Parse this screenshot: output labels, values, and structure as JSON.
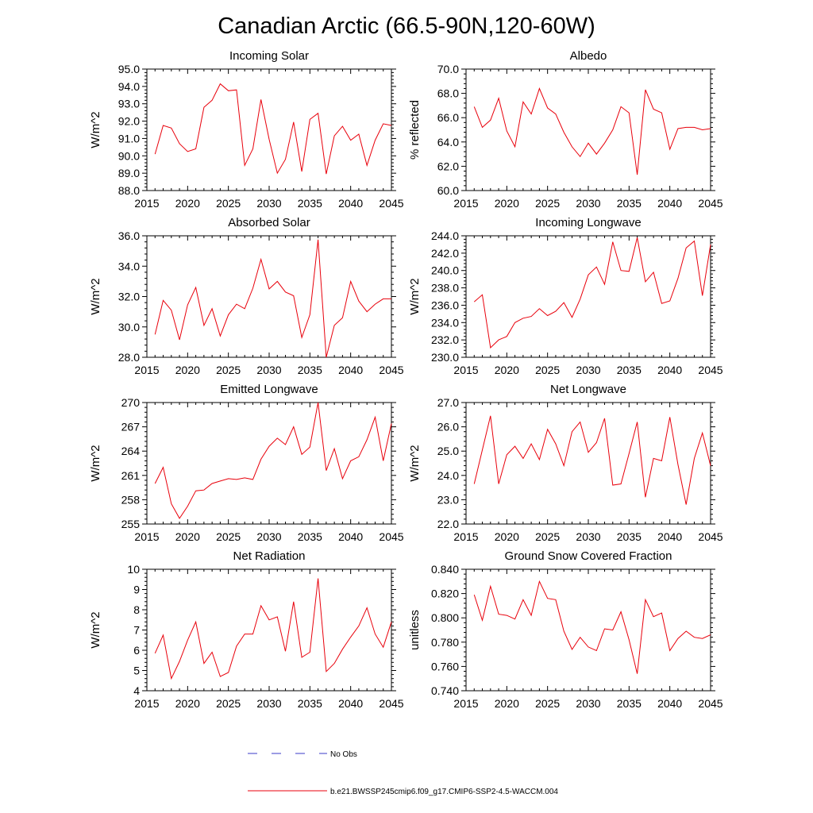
{
  "title": "Canadian Arctic (66.5-90N,120-60W)",
  "colors": {
    "model": "#e8000b",
    "obs": "#3b3bc8",
    "axis": "#000000"
  },
  "legend": {
    "obs_label": "No Obs",
    "model_label": "b.e21.BWSSP245cmip6.f09_g17.CMIP6-SSP2-4.5-WACCM.004"
  },
  "chart_data": [
    {
      "type": "line",
      "title": "Incoming Solar",
      "xlabel": "",
      "ylabel": "W/m^2",
      "xlim": [
        2015,
        2045
      ],
      "ylim": [
        88,
        95
      ],
      "xticks": [
        "2015",
        "2020",
        "2025",
        "2030",
        "2035",
        "2040",
        "2045"
      ],
      "yticks": [
        "88.0",
        "89.0",
        "90.0",
        "91.0",
        "92.0",
        "93.0",
        "94.0",
        "95.0"
      ],
      "x": [
        2016,
        2017,
        2018,
        2019,
        2020,
        2021,
        2022,
        2023,
        2024,
        2025,
        2026,
        2027,
        2028,
        2029,
        2030,
        2031,
        2032,
        2033,
        2034,
        2035,
        2036,
        2037,
        2038,
        2039,
        2040,
        2041,
        2042,
        2043,
        2044,
        2045
      ],
      "values": [
        90.1,
        91.75,
        91.6,
        90.7,
        90.25,
        90.4,
        92.8,
        93.2,
        94.15,
        93.75,
        93.8,
        89.45,
        90.4,
        93.25,
        90.95,
        89.0,
        89.8,
        91.95,
        89.1,
        92.1,
        92.45,
        88.95,
        91.15,
        91.7,
        90.9,
        91.25,
        89.45,
        90.9,
        91.85,
        91.75
      ],
      "series_name": "b.e21.BWSSP245cmip6.f09_g17.CMIP6-SSP2-4.5-WACCM.004"
    },
    {
      "type": "line",
      "title": "Albedo",
      "xlabel": "",
      "ylabel": "% reflected",
      "xlim": [
        2015,
        2045
      ],
      "ylim": [
        60,
        70
      ],
      "xticks": [
        "2015",
        "2020",
        "2025",
        "2030",
        "2035",
        "2040",
        "2045"
      ],
      "yticks": [
        "60.0",
        "62.0",
        "64.0",
        "66.0",
        "68.0",
        "70.0"
      ],
      "x": [
        2016,
        2017,
        2018,
        2019,
        2020,
        2021,
        2022,
        2023,
        2024,
        2025,
        2026,
        2027,
        2028,
        2029,
        2030,
        2031,
        2032,
        2033,
        2034,
        2035,
        2036,
        2037,
        2038,
        2039,
        2040,
        2041,
        2042,
        2043,
        2044,
        2045
      ],
      "values": [
        66.9,
        65.2,
        65.8,
        67.6,
        64.9,
        63.6,
        67.3,
        66.3,
        68.4,
        66.8,
        66.3,
        64.8,
        63.6,
        62.8,
        63.9,
        63.0,
        63.9,
        65.0,
        66.9,
        66.4,
        61.3,
        68.3,
        66.7,
        66.4,
        63.4,
        65.1,
        65.2,
        65.2,
        65.0,
        65.1
      ],
      "series_name": "b.e21.BWSSP245cmip6.f09_g17.CMIP6-SSP2-4.5-WACCM.004"
    },
    {
      "type": "line",
      "title": "Absorbed Solar",
      "xlabel": "",
      "ylabel": "W/m^2",
      "xlim": [
        2015,
        2045
      ],
      "ylim": [
        28,
        36
      ],
      "xticks": [
        "2015",
        "2020",
        "2025",
        "2030",
        "2035",
        "2040",
        "2045"
      ],
      "yticks": [
        "28.0",
        "30.0",
        "32.0",
        "34.0",
        "36.0"
      ],
      "x": [
        2016,
        2017,
        2018,
        2019,
        2020,
        2021,
        2022,
        2023,
        2024,
        2025,
        2026,
        2027,
        2028,
        2029,
        2030,
        2031,
        2032,
        2033,
        2034,
        2035,
        2036,
        2037,
        2038,
        2039,
        2040,
        2041,
        2042,
        2043,
        2044,
        2045
      ],
      "values": [
        29.5,
        31.75,
        31.1,
        29.15,
        31.45,
        32.6,
        30.1,
        31.2,
        29.4,
        30.8,
        31.5,
        31.2,
        32.55,
        34.45,
        32.5,
        33.0,
        32.3,
        32.05,
        29.3,
        30.8,
        35.75,
        28.0,
        30.1,
        30.6,
        33.0,
        31.7,
        31.0,
        31.5,
        31.85,
        31.85
      ],
      "series_name": "b.e21.BWSSP245cmip6.f09_g17.CMIP6-SSP2-4.5-WACCM.004"
    },
    {
      "type": "line",
      "title": "Incoming Longwave",
      "xlabel": "",
      "ylabel": "W/m^2",
      "xlim": [
        2015,
        2045
      ],
      "ylim": [
        230,
        244
      ],
      "xticks": [
        "2015",
        "2020",
        "2025",
        "2030",
        "2035",
        "2040",
        "2045"
      ],
      "yticks": [
        "230.0",
        "232.0",
        "234.0",
        "236.0",
        "238.0",
        "240.0",
        "242.0",
        "244.0"
      ],
      "x": [
        2016,
        2017,
        2018,
        2019,
        2020,
        2021,
        2022,
        2023,
        2024,
        2025,
        2026,
        2027,
        2028,
        2029,
        2030,
        2031,
        2032,
        2033,
        2034,
        2035,
        2036,
        2037,
        2038,
        2039,
        2040,
        2041,
        2042,
        2043,
        2044,
        2045
      ],
      "values": [
        236.4,
        237.2,
        231.1,
        232.0,
        232.4,
        234.0,
        234.5,
        234.7,
        235.6,
        234.8,
        235.3,
        236.3,
        234.6,
        236.7,
        239.5,
        240.4,
        238.4,
        243.3,
        240.0,
        239.9,
        243.8,
        238.7,
        239.8,
        236.2,
        236.5,
        239.1,
        242.6,
        243.4,
        237.1,
        243.0
      ],
      "series_name": "b.e21.BWSSP245cmip6.f09_g17.CMIP6-SSP2-4.5-WACCM.004"
    },
    {
      "type": "line",
      "title": "Emitted Longwave",
      "xlabel": "",
      "ylabel": "W/m^2",
      "xlim": [
        2015,
        2045
      ],
      "ylim": [
        255,
        270
      ],
      "xticks": [
        "2015",
        "2020",
        "2025",
        "2030",
        "2035",
        "2040",
        "2045"
      ],
      "yticks": [
        "255",
        "258",
        "261",
        "264",
        "267",
        "270"
      ],
      "x": [
        2016,
        2017,
        2018,
        2019,
        2020,
        2021,
        2022,
        2023,
        2024,
        2025,
        2026,
        2027,
        2028,
        2029,
        2030,
        2031,
        2032,
        2033,
        2034,
        2035,
        2036,
        2037,
        2038,
        2039,
        2040,
        2041,
        2042,
        2043,
        2044,
        2045
      ],
      "values": [
        260.0,
        262.0,
        257.5,
        255.7,
        257.2,
        259.1,
        259.2,
        260.0,
        260.3,
        260.6,
        260.5,
        260.7,
        260.5,
        263.0,
        264.6,
        265.6,
        264.8,
        267.0,
        263.6,
        264.5,
        270.0,
        261.6,
        264.3,
        260.6,
        262.8,
        263.3,
        265.4,
        268.2,
        262.8,
        267.4
      ],
      "series_name": "b.e21.BWSSP245cmip6.f09_g17.CMIP6-SSP2-4.5-WACCM.004"
    },
    {
      "type": "line",
      "title": "Net Longwave",
      "xlabel": "",
      "ylabel": "W/m^2",
      "xlim": [
        2015,
        2045
      ],
      "ylim": [
        22,
        27
      ],
      "xticks": [
        "2015",
        "2020",
        "2025",
        "2030",
        "2035",
        "2040",
        "2045"
      ],
      "yticks": [
        "22.0",
        "23.0",
        "24.0",
        "25.0",
        "26.0",
        "27.0"
      ],
      "x": [
        2016,
        2017,
        2018,
        2019,
        2020,
        2021,
        2022,
        2023,
        2024,
        2025,
        2026,
        2027,
        2028,
        2029,
        2030,
        2031,
        2032,
        2033,
        2034,
        2035,
        2036,
        2037,
        2038,
        2039,
        2040,
        2041,
        2042,
        2043,
        2044,
        2045
      ],
      "values": [
        23.65,
        25.05,
        26.45,
        23.65,
        24.85,
        25.2,
        24.7,
        25.3,
        24.65,
        25.9,
        25.3,
        24.4,
        25.8,
        26.2,
        24.95,
        25.35,
        26.35,
        23.6,
        23.65,
        24.9,
        26.2,
        23.1,
        24.7,
        24.6,
        26.4,
        24.45,
        22.8,
        24.7,
        25.75,
        24.4
      ],
      "series_name": "b.e21.BWSSP245cmip6.f09_g17.CMIP6-SSP2-4.5-WACCM.004"
    },
    {
      "type": "line",
      "title": "Net Radiation",
      "xlabel": "",
      "ylabel": "W/m^2",
      "xlim": [
        2015,
        2045
      ],
      "ylim": [
        4,
        10
      ],
      "xticks": [
        "2015",
        "2020",
        "2025",
        "2030",
        "2035",
        "2040",
        "2045"
      ],
      "yticks": [
        "4",
        "5",
        "6",
        "7",
        "8",
        "9",
        "10"
      ],
      "x": [
        2016,
        2017,
        2018,
        2019,
        2020,
        2021,
        2022,
        2023,
        2024,
        2025,
        2026,
        2027,
        2028,
        2029,
        2030,
        2031,
        2032,
        2033,
        2034,
        2035,
        2036,
        2037,
        2038,
        2039,
        2040,
        2041,
        2042,
        2043,
        2044,
        2045
      ],
      "values": [
        5.85,
        6.75,
        4.6,
        5.45,
        6.5,
        7.4,
        5.35,
        5.9,
        4.7,
        4.9,
        6.2,
        6.8,
        6.8,
        8.2,
        7.5,
        7.65,
        5.95,
        8.4,
        5.65,
        5.9,
        9.55,
        4.95,
        5.35,
        6.05,
        6.65,
        7.2,
        8.1,
        6.8,
        6.15,
        7.4
      ],
      "series_name": "b.e21.BWSSP245cmip6.f09_g17.CMIP6-SSP2-4.5-WACCM.004"
    },
    {
      "type": "line",
      "title": "Ground Snow Covered Fraction",
      "xlabel": "",
      "ylabel": "unitless",
      "xlim": [
        2015,
        2045
      ],
      "ylim": [
        0.74,
        0.84
      ],
      "xticks": [
        "2015",
        "2020",
        "2025",
        "2030",
        "2035",
        "2040",
        "2045"
      ],
      "yticks": [
        "0.740",
        "0.760",
        "0.780",
        "0.800",
        "0.820",
        "0.840"
      ],
      "x": [
        2016,
        2017,
        2018,
        2019,
        2020,
        2021,
        2022,
        2023,
        2024,
        2025,
        2026,
        2027,
        2028,
        2029,
        2030,
        2031,
        2032,
        2033,
        2034,
        2035,
        2036,
        2037,
        2038,
        2039,
        2040,
        2041,
        2042,
        2043,
        2044,
        2045
      ],
      "values": [
        0.819,
        0.798,
        0.826,
        0.803,
        0.802,
        0.799,
        0.815,
        0.802,
        0.83,
        0.816,
        0.815,
        0.789,
        0.774,
        0.784,
        0.776,
        0.773,
        0.791,
        0.79,
        0.805,
        0.782,
        0.754,
        0.815,
        0.801,
        0.804,
        0.773,
        0.783,
        0.789,
        0.784,
        0.783,
        0.786
      ],
      "series_name": "b.e21.BWSSP245cmip6.f09_g17.CMIP6-SSP2-4.5-WACCM.004"
    }
  ]
}
